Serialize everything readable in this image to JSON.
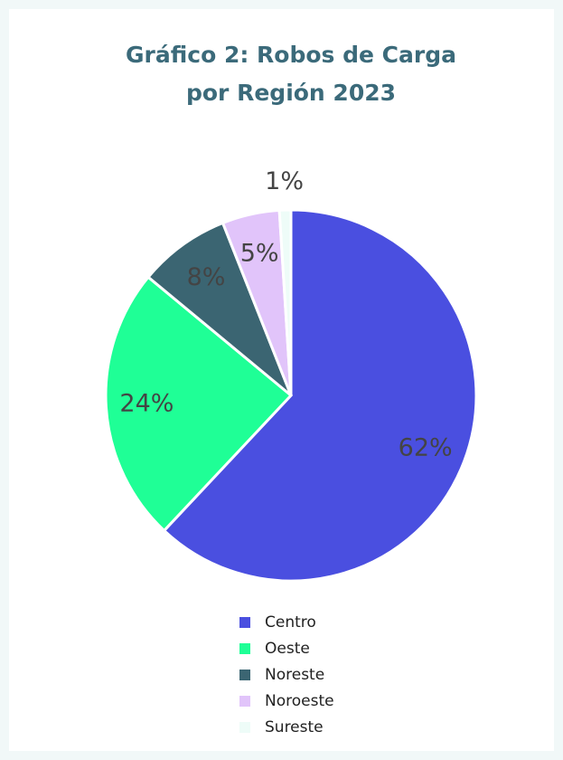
{
  "chart_data": {
    "type": "pie",
    "title": [
      "Gráfico 2: Robos  de Carga",
      "por Región 2023"
    ],
    "categories": [
      "Centro",
      "Oeste",
      "Noreste",
      "Noroeste",
      "Sureste"
    ],
    "values": [
      62,
      24,
      8,
      5,
      1
    ],
    "value_labels": [
      "62%",
      "24%",
      "8%",
      "5%",
      "1%"
    ],
    "colors": [
      "#4a4fe0",
      "#1fff96",
      "#3b6572",
      "#e1c4fa",
      "#eefcf8"
    ],
    "legend": "bottom"
  }
}
